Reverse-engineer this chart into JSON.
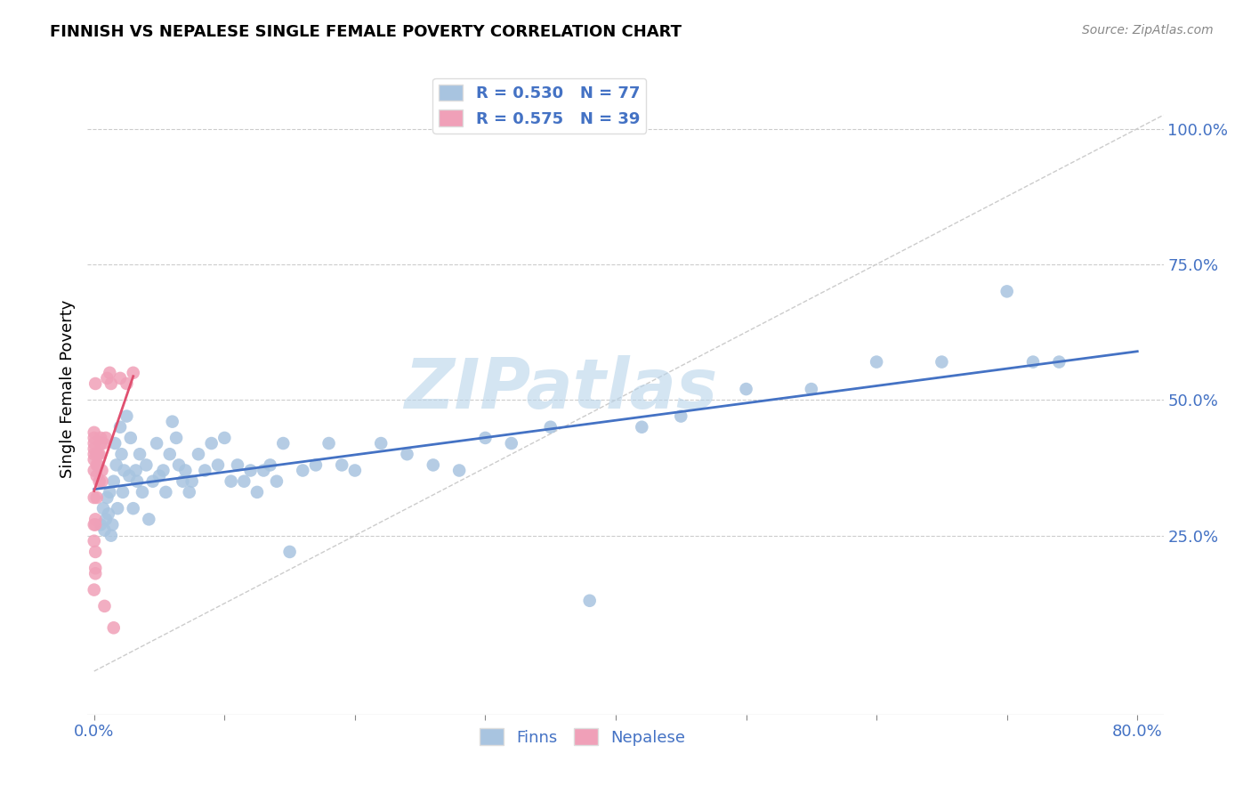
{
  "title": "FINNISH VS NEPALESE SINGLE FEMALE POVERTY CORRELATION CHART",
  "source": "Source: ZipAtlas.com",
  "ylabel": "Single Female Poverty",
  "xlim": [
    -0.005,
    0.82
  ],
  "ylim": [
    -0.08,
    1.12
  ],
  "x_ticks": [
    0.0,
    0.1,
    0.2,
    0.3,
    0.4,
    0.5,
    0.6,
    0.7,
    0.8
  ],
  "x_tick_labels": [
    "0.0%",
    "",
    "",
    "",
    "",
    "",
    "",
    "",
    "80.0%"
  ],
  "y_ticks_right": [
    0.25,
    0.5,
    0.75,
    1.0
  ],
  "y_tick_labels_right": [
    "25.0%",
    "50.0%",
    "75.0%",
    "100.0%"
  ],
  "finns_R": 0.53,
  "finns_N": 77,
  "nepalese_R": 0.575,
  "nepalese_N": 39,
  "finns_color": "#a8c4e0",
  "nepalese_color": "#f0a0b8",
  "finns_line_color": "#4472c4",
  "nepalese_line_color": "#e05070",
  "legend_text_color": "#4472c4",
  "watermark": "ZIPatlas",
  "watermark_color": "#b8d4ea",
  "finns_x": [
    0.005,
    0.007,
    0.008,
    0.009,
    0.01,
    0.011,
    0.012,
    0.013,
    0.014,
    0.015,
    0.016,
    0.017,
    0.018,
    0.02,
    0.021,
    0.022,
    0.023,
    0.025,
    0.027,
    0.028,
    0.03,
    0.032,
    0.033,
    0.035,
    0.037,
    0.04,
    0.042,
    0.045,
    0.048,
    0.05,
    0.053,
    0.055,
    0.058,
    0.06,
    0.063,
    0.065,
    0.068,
    0.07,
    0.073,
    0.075,
    0.08,
    0.085,
    0.09,
    0.095,
    0.1,
    0.105,
    0.11,
    0.115,
    0.12,
    0.125,
    0.13,
    0.135,
    0.14,
    0.145,
    0.15,
    0.16,
    0.17,
    0.18,
    0.19,
    0.2,
    0.22,
    0.24,
    0.26,
    0.28,
    0.3,
    0.32,
    0.35,
    0.38,
    0.42,
    0.45,
    0.5,
    0.55,
    0.6,
    0.65,
    0.7,
    0.72,
    0.74
  ],
  "finns_y": [
    0.27,
    0.3,
    0.26,
    0.28,
    0.32,
    0.29,
    0.33,
    0.25,
    0.27,
    0.35,
    0.42,
    0.38,
    0.3,
    0.45,
    0.4,
    0.33,
    0.37,
    0.47,
    0.36,
    0.43,
    0.3,
    0.37,
    0.35,
    0.4,
    0.33,
    0.38,
    0.28,
    0.35,
    0.42,
    0.36,
    0.37,
    0.33,
    0.4,
    0.46,
    0.43,
    0.38,
    0.35,
    0.37,
    0.33,
    0.35,
    0.4,
    0.37,
    0.42,
    0.38,
    0.43,
    0.35,
    0.38,
    0.35,
    0.37,
    0.33,
    0.37,
    0.38,
    0.35,
    0.42,
    0.22,
    0.37,
    0.38,
    0.42,
    0.38,
    0.37,
    0.42,
    0.4,
    0.38,
    0.37,
    0.43,
    0.42,
    0.45,
    0.13,
    0.45,
    0.47,
    0.52,
    0.52,
    0.57,
    0.57,
    0.7,
    0.57,
    0.57
  ],
  "nepalese_x": [
    0.0,
    0.0,
    0.0,
    0.0,
    0.0,
    0.0,
    0.0,
    0.0,
    0.0,
    0.0,
    0.001,
    0.001,
    0.001,
    0.001,
    0.001,
    0.001,
    0.002,
    0.002,
    0.002,
    0.002,
    0.003,
    0.003,
    0.004,
    0.004,
    0.005,
    0.005,
    0.006,
    0.006,
    0.007,
    0.008,
    0.009,
    0.01,
    0.012,
    0.013,
    0.015,
    0.02,
    0.025,
    0.03,
    0.0
  ],
  "nepalese_y": [
    0.27,
    0.37,
    0.4,
    0.32,
    0.43,
    0.44,
    0.41,
    0.42,
    0.39,
    0.15,
    0.27,
    0.28,
    0.22,
    0.18,
    0.19,
    0.53,
    0.36,
    0.38,
    0.4,
    0.32,
    0.38,
    0.4,
    0.4,
    0.35,
    0.42,
    0.43,
    0.37,
    0.35,
    0.42,
    0.12,
    0.43,
    0.54,
    0.55,
    0.53,
    0.08,
    0.54,
    0.53,
    0.55,
    0.24
  ]
}
